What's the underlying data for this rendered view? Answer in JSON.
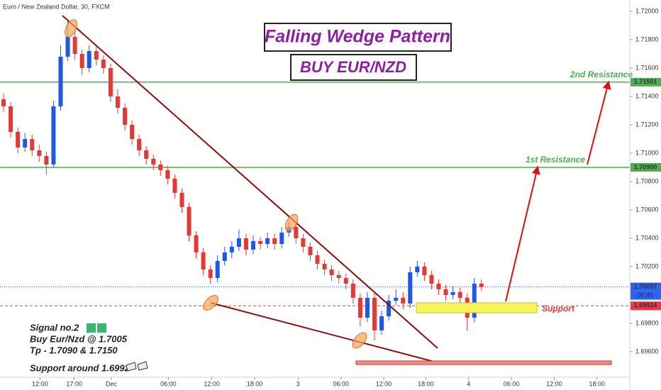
{
  "chart_data": {
    "type": "candlestick",
    "title": "Euro / New Zealand Dollar, 30, FXCM",
    "up_color": "#2157e6",
    "down_color": "#e53935",
    "xlim": [
      -0.5,
      87.8
    ],
    "ylim": [
      1.6942,
      1.7208
    ],
    "xticks": [
      {
        "value": 5.1,
        "label": "12:00"
      },
      {
        "value": 9.9,
        "label": "17:00"
      },
      {
        "value": 15.1,
        "label": "Dec"
      },
      {
        "value": 23.1,
        "label": "06:00"
      },
      {
        "value": 29.2,
        "label": "12:00"
      },
      {
        "value": 35.2,
        "label": "18:00"
      },
      {
        "value": 41.3,
        "label": "3"
      },
      {
        "value": 47.3,
        "label": "06:00"
      },
      {
        "value": 53.3,
        "label": "12:00"
      },
      {
        "value": 59.2,
        "label": "18:00"
      },
      {
        "value": 65.2,
        "label": "4"
      },
      {
        "value": 71.2,
        "label": "06:00"
      },
      {
        "value": 77.2,
        "label": "12:00"
      },
      {
        "value": 83.2,
        "label": "18:00"
      }
    ],
    "yticks": [
      {
        "value": 1.72,
        "label": "1.72000"
      },
      {
        "value": 1.718,
        "label": "1.71800"
      },
      {
        "value": 1.716,
        "label": "1.71600"
      },
      {
        "value": 1.714,
        "label": "1.71400"
      },
      {
        "value": 1.712,
        "label": "1.71200"
      },
      {
        "value": 1.71,
        "label": "1.71000"
      },
      {
        "value": 1.708,
        "label": "1.70800"
      },
      {
        "value": 1.706,
        "label": "1.70600"
      },
      {
        "value": 1.704,
        "label": "1.70400"
      },
      {
        "value": 1.702,
        "label": "1.70200"
      },
      {
        "value": 1.698,
        "label": "1.69800"
      },
      {
        "value": 1.696,
        "label": "1.69600"
      }
    ],
    "price_lines": [
      {
        "value": 1.71501,
        "label": "1.71501",
        "color": "#4caf50",
        "style": "solid"
      },
      {
        "value": 1.709,
        "label": "1.70900",
        "color": "#4caf50",
        "style": "solid"
      },
      {
        "value": 1.70057,
        "label": "1.70057",
        "color": "#2962ff",
        "style": "dotted"
      },
      {
        "value": 1.69924,
        "label": "1.69924",
        "color": "#f23645",
        "style": "dashed"
      }
    ],
    "countdown": "06:45",
    "candles": [
      [
        1.7138,
        1.7142,
        1.7129,
        1.7133
      ],
      [
        1.7133,
        1.7136,
        1.7111,
        1.7115
      ],
      [
        1.7115,
        1.7118,
        1.71,
        1.7104
      ],
      [
        1.7104,
        1.7114,
        1.7101,
        1.711
      ],
      [
        1.711,
        1.7113,
        1.7098,
        1.7102
      ],
      [
        1.7102,
        1.7106,
        1.7094,
        1.7098
      ],
      [
        1.7098,
        1.7101,
        1.7085,
        1.7092
      ],
      [
        1.7092,
        1.7137,
        1.709,
        1.7133
      ],
      [
        1.7133,
        1.7176,
        1.713,
        1.7168
      ],
      [
        1.7168,
        1.7193,
        1.7165,
        1.7182
      ],
      [
        1.7182,
        1.7186,
        1.7166,
        1.717
      ],
      [
        1.717,
        1.7173,
        1.7155,
        1.716
      ],
      [
        1.716,
        1.7176,
        1.7157,
        1.7172
      ],
      [
        1.7172,
        1.7175,
        1.7162,
        1.7166
      ],
      [
        1.7166,
        1.7169,
        1.7156,
        1.716
      ],
      [
        1.716,
        1.7163,
        1.7136,
        1.714
      ],
      [
        1.714,
        1.7145,
        1.7128,
        1.7132
      ],
      [
        1.7132,
        1.7135,
        1.7116,
        1.712
      ],
      [
        1.712,
        1.7123,
        1.7106,
        1.711
      ],
      [
        1.711,
        1.7113,
        1.7098,
        1.7102
      ],
      [
        1.7102,
        1.7105,
        1.7092,
        1.7096
      ],
      [
        1.7096,
        1.7099,
        1.7088,
        1.7092
      ],
      [
        1.7092,
        1.7095,
        1.7084,
        1.7088
      ],
      [
        1.7088,
        1.7091,
        1.7078,
        1.7082
      ],
      [
        1.7082,
        1.7085,
        1.7068,
        1.7072
      ],
      [
        1.7072,
        1.7075,
        1.7058,
        1.7062
      ],
      [
        1.7062,
        1.7065,
        1.7038,
        1.7042
      ],
      [
        1.7042,
        1.7045,
        1.7026,
        1.703
      ],
      [
        1.703,
        1.7033,
        1.7014,
        1.7018
      ],
      [
        1.7018,
        1.7021,
        1.7008,
        1.7012
      ],
      [
        1.7012,
        1.7028,
        1.7009,
        1.7024
      ],
      [
        1.7024,
        1.7034,
        1.7021,
        1.703
      ],
      [
        1.703,
        1.7038,
        1.7026,
        1.7034
      ],
      [
        1.7034,
        1.7046,
        1.7031,
        1.704
      ],
      [
        1.704,
        1.7043,
        1.7028,
        1.7032
      ],
      [
        1.7032,
        1.7042,
        1.7029,
        1.7038
      ],
      [
        1.7038,
        1.7041,
        1.7032,
        1.7036
      ],
      [
        1.7036,
        1.7044,
        1.7033,
        1.704
      ],
      [
        1.704,
        1.7043,
        1.7032,
        1.7036
      ],
      [
        1.7036,
        1.7048,
        1.7033,
        1.7044
      ],
      [
        1.7044,
        1.7052,
        1.7041,
        1.7048
      ],
      [
        1.7048,
        1.7051,
        1.7036,
        1.704
      ],
      [
        1.704,
        1.7043,
        1.703,
        1.7034
      ],
      [
        1.7034,
        1.7037,
        1.7024,
        1.7028
      ],
      [
        1.7028,
        1.7031,
        1.7018,
        1.7022
      ],
      [
        1.7022,
        1.7025,
        1.7014,
        1.7018
      ],
      [
        1.7018,
        1.7021,
        1.701,
        1.7014
      ],
      [
        1.7014,
        1.7017,
        1.7008,
        1.7012
      ],
      [
        1.7012,
        1.7015,
        1.7004,
        1.7008
      ],
      [
        1.7008,
        1.7011,
        1.6994,
        1.6998
      ],
      [
        1.6998,
        1.7001,
        1.6978,
        1.6984
      ],
      [
        1.6984,
        1.7002,
        1.6981,
        1.6998
      ],
      [
        1.6998,
        1.7001,
        1.6968,
        1.6975
      ],
      [
        1.6975,
        1.6989,
        1.6972,
        1.6985
      ],
      [
        1.6985,
        1.7,
        1.6982,
        1.6996
      ],
      [
        1.6996,
        1.7004,
        1.6993,
        1.6998
      ],
      [
        1.6998,
        1.7002,
        1.699,
        1.6994
      ],
      [
        1.6994,
        1.702,
        1.6991,
        1.7016
      ],
      [
        1.7016,
        1.7024,
        1.7013,
        1.702
      ],
      [
        1.702,
        1.7023,
        1.701,
        1.7014
      ],
      [
        1.7014,
        1.7017,
        1.7004,
        1.7008
      ],
      [
        1.7008,
        1.7011,
        1.7,
        1.7004
      ],
      [
        1.7004,
        1.7007,
        1.6996,
        1.7
      ],
      [
        1.7,
        1.7006,
        1.6997,
        1.7002
      ],
      [
        1.7002,
        1.7005,
        1.6994,
        1.6998
      ],
      [
        1.6998,
        1.7001,
        1.6975,
        1.6984
      ],
      [
        1.6984,
        1.7012,
        1.6981,
        1.7008
      ],
      [
        1.7008,
        1.7011,
        1.7003,
        1.70057
      ]
    ],
    "annotations": {
      "pattern": "Falling Wedge Pattern",
      "action": "BUY EUR/NZD",
      "resistance_2": "2nd Resistance",
      "resistance_1": "1st Resistance",
      "support": "Support",
      "signal": "Signal no.2",
      "entry": "Buy Eur/Nzd @ 1.7005",
      "targets": "Tp - 1.7090 & 1.7150",
      "support_note": "Support around 1.6992"
    }
  }
}
